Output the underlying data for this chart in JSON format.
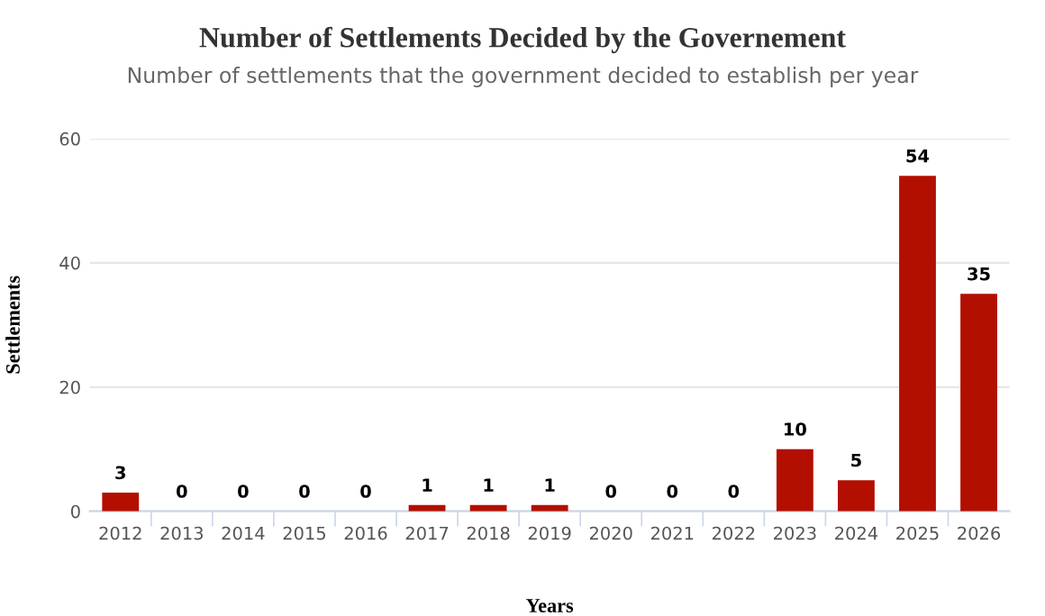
{
  "chart_data": {
    "type": "bar",
    "title": "Number of Settlements Decided by the Governement",
    "subtitle": "Number of settlements that the government decided to establish per year",
    "xlabel": "Years",
    "ylabel": "Settlements",
    "categories": [
      "2012",
      "2013",
      "2014",
      "2015",
      "2016",
      "2017",
      "2018",
      "2019",
      "2020",
      "2021",
      "2022",
      "2023",
      "2024",
      "2025",
      "2026"
    ],
    "values": [
      3,
      0,
      0,
      0,
      0,
      1,
      1,
      1,
      0,
      0,
      0,
      10,
      5,
      54,
      35
    ],
    "color": "#b30f00",
    "ylim": [
      0,
      60
    ],
    "yticks": [
      0,
      20,
      40,
      60
    ],
    "grid": "y",
    "data_labels": true,
    "legend": false
  }
}
